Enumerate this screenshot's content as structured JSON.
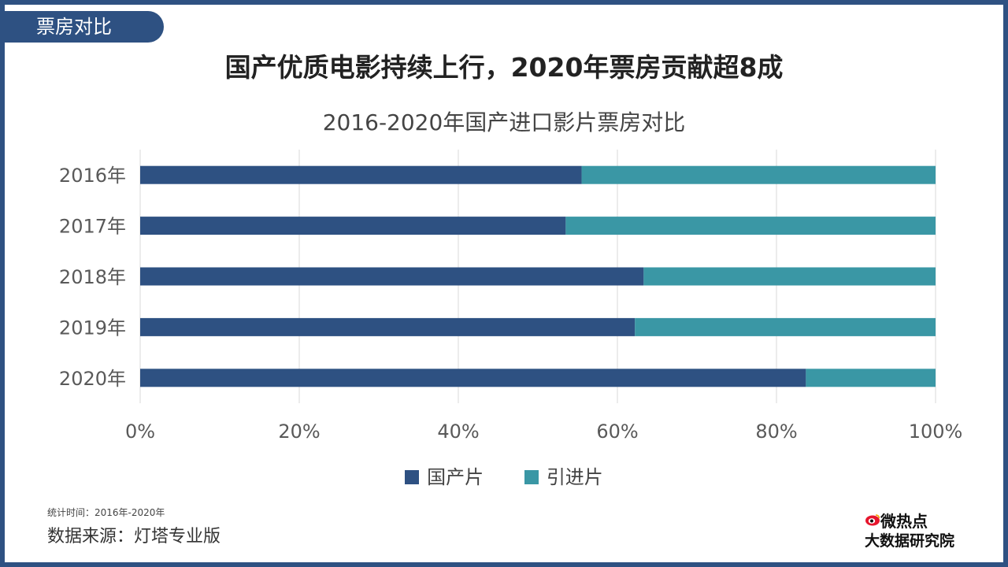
{
  "tag": "票房对比",
  "main_title": "国产优质电影持续上行，2020年票房贡献超8成",
  "chart_data": {
    "type": "bar",
    "orientation": "horizontal",
    "stacked": "percent",
    "title": "2016-2020年国产进口影片票房对比",
    "categories": [
      "2016年",
      "2017年",
      "2018年",
      "2019年",
      "2020年"
    ],
    "series": [
      {
        "name": "国产片",
        "values": [
          55.5,
          53.5,
          63.3,
          62.2,
          83.7
        ]
      },
      {
        "name": "引进片",
        "values": [
          44.5,
          46.5,
          36.7,
          37.8,
          16.3
        ]
      }
    ],
    "x_ticks": [
      "0%",
      "20%",
      "40%",
      "60%",
      "80%",
      "100%"
    ],
    "xlim": [
      0,
      100
    ],
    "grid": "vertical",
    "legend_position": "bottom",
    "colors": [
      "#2e5182",
      "#3a97a5"
    ]
  },
  "notes": {
    "period": "统计时间：2016年-2020年",
    "source": "数据来源：灯塔专业版"
  },
  "logo": {
    "line1": "微热点",
    "line2": "大数据研究院",
    "icon": "weibo-eye-icon"
  }
}
